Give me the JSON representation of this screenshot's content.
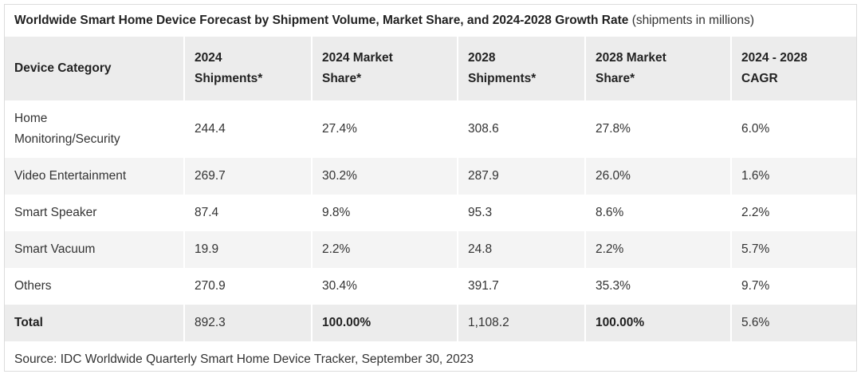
{
  "title": "Worldwide Smart Home Device Forecast by Shipment Volume, Market Share, and 2024-2028 Growth Rate",
  "title_unit": "(shipments in millions)",
  "source": "Source: IDC Worldwide Quarterly Smart Home Device Tracker, September 30, 2023",
  "chart_data": {
    "type": "table",
    "title": "Worldwide Smart Home Device Forecast by Shipment Volume, Market Share, and 2024-2028 Growth Rate",
    "columns": [
      {
        "line1": "Device Category",
        "line2": ""
      },
      {
        "line1": "2024",
        "line2": "Shipments*"
      },
      {
        "line1": "2024 Market",
        "line2": "Share*"
      },
      {
        "line1": "2028",
        "line2": "Shipments*"
      },
      {
        "line1": "2028 Market",
        "line2": "Share*"
      },
      {
        "line1": "2024 - 2028",
        "line2": "CAGR"
      }
    ],
    "rows": [
      {
        "category_line1": "Home",
        "category_line2": "Monitoring/Security",
        "values": [
          "244.4",
          "27.4%",
          "308.6",
          "27.8%",
          "6.0%"
        ]
      },
      {
        "category_line1": "Video Entertainment",
        "category_line2": "",
        "values": [
          "269.7",
          "30.2%",
          "287.9",
          "26.0%",
          "1.6%"
        ]
      },
      {
        "category_line1": "Smart Speaker",
        "category_line2": "",
        "values": [
          "87.4",
          "9.8%",
          "95.3",
          "8.6%",
          "2.2%"
        ]
      },
      {
        "category_line1": "Smart Vacuum",
        "category_line2": "",
        "values": [
          "19.9",
          "2.2%",
          "24.8",
          "2.2%",
          "5.7%"
        ]
      },
      {
        "category_line1": "Others",
        "category_line2": "",
        "values": [
          "270.9",
          "30.4%",
          "391.7",
          "35.3%",
          "9.7%"
        ]
      }
    ],
    "total": {
      "label": "Total",
      "values": [
        "892.3",
        "100.00%",
        "1,108.2",
        "100.00%",
        "5.6%"
      ]
    }
  }
}
